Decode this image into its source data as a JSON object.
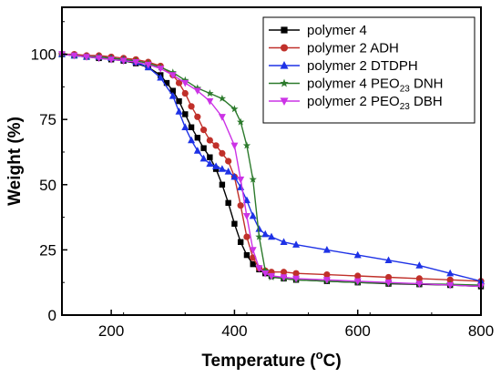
{
  "chart_data": {
    "type": "line",
    "xlabel": {
      "main": "Temperature (",
      "sup": "o",
      "unit": "C)"
    },
    "ylabel": "Weight (%)",
    "xlim": [
      120,
      800
    ],
    "ylim": [
      0,
      118
    ],
    "xticks": [
      200,
      400,
      600,
      800
    ],
    "yticks": [
      0,
      25,
      50,
      75,
      100
    ],
    "grid": false,
    "legend_position": "top-right",
    "series": [
      {
        "name": "polymer 4",
        "name_parts": [
          "polymer 4"
        ],
        "color": "#000000",
        "marker": "square",
        "x": [
          120,
          140,
          160,
          180,
          200,
          220,
          240,
          260,
          280,
          290,
          300,
          310,
          320,
          330,
          340,
          350,
          360,
          370,
          380,
          390,
          400,
          410,
          420,
          430,
          440,
          450,
          460,
          480,
          500,
          550,
          600,
          650,
          700,
          750,
          800
        ],
        "y": [
          100,
          99.5,
          99,
          98.5,
          98,
          97.5,
          96.5,
          95,
          92,
          89,
          86,
          82,
          77,
          72,
          68,
          64,
          60.5,
          56,
          50,
          43,
          35,
          28,
          23,
          19.5,
          17.5,
          16,
          15,
          14,
          13.5,
          13,
          12.5,
          12,
          11.8,
          11.5,
          11
        ]
      },
      {
        "name": "polymer 2 ADH",
        "name_parts": [
          "polymer 2 ADH"
        ],
        "color": "#c0302a",
        "marker": "circle",
        "x": [
          120,
          140,
          160,
          180,
          200,
          220,
          240,
          260,
          280,
          300,
          310,
          320,
          330,
          340,
          350,
          360,
          370,
          380,
          390,
          400,
          410,
          420,
          430,
          440,
          450,
          460,
          480,
          500,
          550,
          600,
          650,
          700,
          750,
          800
        ],
        "y": [
          100,
          100,
          99.5,
          99.5,
          99,
          98.5,
          98,
          97,
          95.5,
          92,
          89,
          85,
          80,
          76,
          71,
          67,
          65,
          62,
          59,
          53,
          42,
          30,
          22,
          18,
          17,
          16.5,
          16.5,
          16,
          15.5,
          15,
          14.5,
          14,
          13.5,
          13
        ]
      },
      {
        "name": "polymer 2 DTDPH",
        "name_parts": [
          "polymer 2 DTDPH"
        ],
        "color": "#1e32e6",
        "marker": "triangle-up",
        "x": [
          120,
          140,
          160,
          180,
          200,
          220,
          240,
          260,
          280,
          300,
          310,
          320,
          330,
          340,
          350,
          360,
          370,
          380,
          390,
          400,
          410,
          420,
          430,
          440,
          450,
          460,
          480,
          500,
          550,
          600,
          650,
          700,
          750,
          800
        ],
        "y": [
          100,
          99.5,
          99,
          99,
          98.5,
          98,
          97,
          95,
          91,
          84,
          78,
          72,
          67,
          63,
          60,
          58,
          57,
          56,
          55,
          53,
          49,
          44,
          38,
          33,
          31,
          30,
          28,
          27,
          25,
          23,
          21,
          19,
          16,
          13
        ]
      },
      {
        "name": "polymer 4 PEO23 DNH",
        "name_parts": [
          "polymer 4 PEO",
          "23",
          " DNH"
        ],
        "color": "#2c7a2c",
        "marker": "star",
        "x": [
          120,
          140,
          160,
          180,
          200,
          220,
          240,
          260,
          280,
          300,
          320,
          340,
          360,
          380,
          400,
          410,
          420,
          430,
          440,
          450,
          460,
          480,
          500,
          550,
          600,
          650,
          700,
          750,
          800
        ],
        "y": [
          100,
          99.5,
          99,
          99,
          98.5,
          98,
          97.5,
          96.5,
          95,
          93,
          90,
          87,
          85,
          83,
          79,
          74,
          65,
          52,
          30,
          17,
          14.5,
          14,
          13.5,
          13,
          12.5,
          12.2,
          12,
          11.8,
          11.5
        ]
      },
      {
        "name": "polymer 2 PEO23 DBH",
        "name_parts": [
          "polymer 2 PEO",
          "23",
          " DBH"
        ],
        "color": "#cc33e6",
        "marker": "triangle-down",
        "x": [
          120,
          140,
          160,
          180,
          200,
          220,
          240,
          260,
          280,
          300,
          320,
          340,
          360,
          380,
          400,
          410,
          420,
          430,
          440,
          450,
          460,
          480,
          500,
          550,
          600,
          650,
          700,
          750,
          800
        ],
        "y": [
          100,
          99.5,
          99,
          98.5,
          98,
          97.5,
          97,
          96,
          94.5,
          92,
          89,
          86,
          82,
          76,
          65,
          52,
          38,
          25,
          18,
          16,
          15,
          14.5,
          14,
          13.5,
          13,
          12.5,
          12,
          11.5,
          11
        ]
      }
    ]
  }
}
